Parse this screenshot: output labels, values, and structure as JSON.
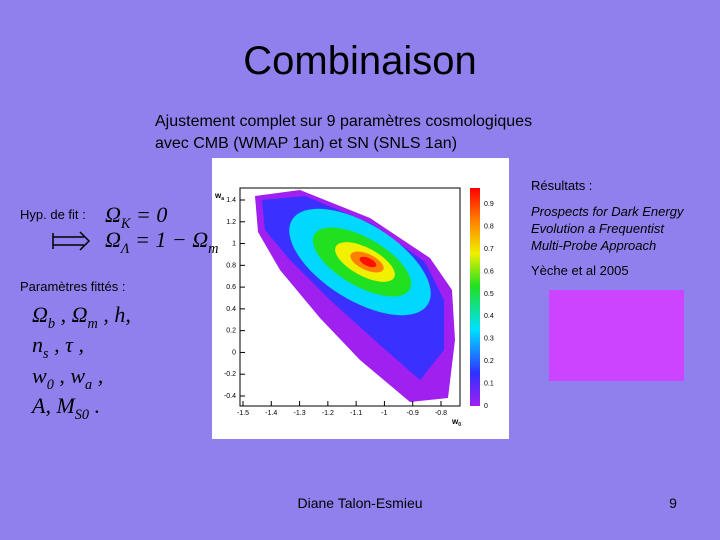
{
  "title": "Combinaison",
  "subtitle": [
    "Ajustement complet sur 9 paramètres cosmologiques",
    "avec CMB (WMAP 1an) et SN (SNLS 1an)"
  ],
  "hypothesis": {
    "label": "Hyp. de fit :",
    "formulas": [
      [
        {
          "text": "Ω",
          "sub": "K"
        },
        {
          "text": " = 0"
        }
      ],
      [
        {
          "text": "Ω",
          "sub": "Λ"
        },
        {
          "text": " = 1 − Ω",
          "sub": "m"
        }
      ]
    ]
  },
  "fitted": {
    "label": "Paramètres fittés :",
    "lines": [
      [
        {
          "text": "Ω",
          "sub": "b"
        },
        {
          "text": " , Ω",
          "sub": "m"
        },
        {
          "text": " , h,"
        }
      ],
      [
        {
          "text": "n",
          "sub": "s"
        },
        {
          "text": " , τ ,"
        }
      ],
      [
        {
          "text": "w",
          "sub": "0"
        },
        {
          "text": " , w",
          "sub": "a"
        },
        {
          "text": " ,"
        }
      ],
      [
        {
          "text": "A, M",
          "sub": "S0"
        },
        {
          "text": " ."
        }
      ]
    ]
  },
  "results": {
    "label": "Résultats :",
    "reference": [
      "Prospects for Dark Energy",
      "Evolution a Frequentist",
      "Multi-Probe Approach"
    ],
    "authors": "Yèche et al 2005"
  },
  "plot": {
    "x_label": {
      "text": "w",
      "sub": "0"
    },
    "y_label": {
      "text": "w",
      "sub": "a"
    },
    "xticks": [
      "-1.5",
      "-1.4",
      "-1.3",
      "-1.2",
      "-1.1",
      "-1",
      "-0.9",
      "-0.8"
    ],
    "yticks": [
      "1.4",
      "1.2",
      "1",
      "0.8",
      "0.6",
      "0.4",
      "0.2",
      "0",
      "-0.2",
      "-0.4"
    ],
    "colorbar_ticks": [
      "0.9",
      "0.8",
      "0.7",
      "0.6",
      "0.5",
      "0.4",
      "0.3",
      "0.2",
      "0.1",
      "0"
    ]
  },
  "footer": {
    "author": "Diane Talon-Esmieu",
    "page": "9"
  }
}
